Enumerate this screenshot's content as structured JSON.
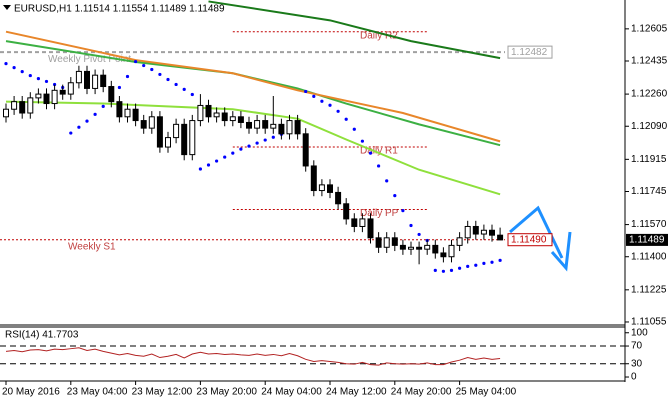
{
  "chart_data": {
    "type": "candlestick",
    "title": "EURUSD,H1  1.11514 1.11554 1.11489 1.11489",
    "categories": [
      "20 May 2016",
      null,
      null,
      null,
      null,
      null,
      null,
      null,
      "23 May 04:00",
      null,
      null,
      null,
      null,
      null,
      null,
      null,
      "23 May 12:00",
      null,
      null,
      null,
      null,
      null,
      null,
      null,
      "23 May 20:00",
      null,
      null,
      null,
      null,
      null,
      null,
      null,
      "24 May 04:00",
      null,
      null,
      null,
      null,
      null,
      null,
      null,
      "24 May 12:00",
      null,
      null,
      null,
      null,
      null,
      null,
      null,
      "24 May 20:00",
      null,
      null,
      null,
      null,
      null,
      null,
      null,
      "25 May 04:00",
      null,
      null,
      null,
      null,
      null
    ],
    "open": [
      1.1214,
      1.1218,
      1.1222,
      1.1216,
      1.1224,
      1.1226,
      1.1221,
      1.1228,
      1.1226,
      1.1232,
      1.1238,
      1.1229,
      1.1236,
      1.123,
      1.1222,
      1.1214,
      1.1218,
      1.1212,
      1.1208,
      1.1214,
      1.1198,
      1.1203,
      1.121,
      1.1194,
      1.1212,
      1.122,
      1.1214,
      1.1216,
      1.1212,
      1.1214,
      1.1211,
      1.1208,
      1.1212,
      1.1208,
      1.121,
      1.1205,
      1.1212,
      1.1205,
      1.1188,
      1.1175,
      1.1178,
      1.1174,
      1.1168,
      1.116,
      1.1156,
      1.116,
      1.115,
      1.1145,
      1.115,
      1.1146,
      1.1144,
      1.1145,
      1.1144,
      1.1146,
      1.1142,
      1.114,
      1.1146,
      1.115,
      1.1156,
      1.1152,
      1.1154,
      1.11514
    ],
    "high": [
      1.1221,
      1.1225,
      1.1225,
      1.1227,
      1.1229,
      1.1229,
      1.1231,
      1.1231,
      1.1235,
      1.1241,
      1.1241,
      1.1239,
      1.1239,
      1.1233,
      1.1225,
      1.1221,
      1.1221,
      1.1215,
      1.1217,
      1.1217,
      1.1206,
      1.1213,
      1.1213,
      1.1215,
      1.1226,
      1.1223,
      1.1219,
      1.1219,
      1.1217,
      1.1217,
      1.1214,
      1.1215,
      1.1215,
      1.1225,
      1.1213,
      1.1215,
      1.1215,
      1.1208,
      1.1191,
      1.1181,
      1.1181,
      1.1177,
      1.1171,
      1.1163,
      1.1163,
      1.1163,
      1.1153,
      1.1153,
      1.1153,
      1.1149,
      1.1148,
      1.1148,
      1.1149,
      1.1149,
      1.1145,
      1.1149,
      1.1153,
      1.1159,
      1.1159,
      1.1157,
      1.1157,
      1.11554
    ],
    "low": [
      1.1211,
      1.1215,
      1.1213,
      1.1213,
      1.1221,
      1.1218,
      1.1218,
      1.1223,
      1.1223,
      1.1229,
      1.1226,
      1.1226,
      1.1227,
      1.1219,
      1.1211,
      1.1211,
      1.1209,
      1.1205,
      1.1205,
      1.1195,
      1.1195,
      1.12,
      1.1191,
      1.1191,
      1.1209,
      1.1211,
      1.1211,
      1.1209,
      1.1209,
      1.1208,
      1.1205,
      1.1205,
      1.1205,
      1.1205,
      1.1202,
      1.1202,
      1.1202,
      1.1185,
      1.1172,
      1.1172,
      1.1171,
      1.1165,
      1.1157,
      1.1153,
      1.1153,
      1.1147,
      1.1142,
      1.1142,
      1.1143,
      1.1141,
      1.1141,
      1.1136,
      1.1141,
      1.1139,
      1.1137,
      1.1137,
      1.1143,
      1.1147,
      1.1149,
      1.1149,
      1.1148,
      1.11489
    ],
    "close": [
      1.1218,
      1.1222,
      1.1216,
      1.1224,
      1.1226,
      1.1221,
      1.1228,
      1.1226,
      1.1232,
      1.1238,
      1.1229,
      1.1236,
      1.123,
      1.1222,
      1.1214,
      1.1218,
      1.1212,
      1.1208,
      1.1214,
      1.1198,
      1.1203,
      1.121,
      1.1194,
      1.1212,
      1.122,
      1.1214,
      1.1216,
      1.1212,
      1.1214,
      1.1211,
      1.1208,
      1.1212,
      1.1208,
      1.121,
      1.1205,
      1.1212,
      1.1205,
      1.1188,
      1.1175,
      1.1178,
      1.1174,
      1.1168,
      1.116,
      1.1156,
      1.116,
      1.115,
      1.1145,
      1.115,
      1.1146,
      1.1144,
      1.1145,
      1.1144,
      1.1146,
      1.1142,
      1.114,
      1.1146,
      1.115,
      1.1156,
      1.1152,
      1.1154,
      1.11514,
      1.11489
    ],
    "up_color": "#ffffff",
    "down_color": "#000000",
    "ylim": [
      1.11039,
      1.12747
    ],
    "yticks": [
      1.12605,
      1.12435,
      {
        "value": 1.1226,
        "label": "1.12260"
      },
      {
        "value": 1.1209,
        "label": "1.12090"
      },
      1.11915,
      1.11745,
      {
        "value": 1.1157,
        "label": "1.11570"
      },
      {
        "value": 1.114,
        "label": "1.11400"
      },
      1.11225,
      1.11055
    ],
    "current_price": 1.11489,
    "lines": [
      {
        "color": "#1a7a1a",
        "x": [
          25,
          40,
          50,
          61
        ],
        "values": [
          1.1275,
          1.1265,
          1.1254,
          1.1245
        ]
      },
      {
        "color": "#3cb043",
        "x": [
          0,
          16,
          28,
          36,
          42,
          51,
          61
        ],
        "values": [
          1.1254,
          1.1243,
          1.1237,
          1.1229,
          1.1221,
          1.121,
          1.1199
        ]
      },
      {
        "color": "#8fe03c",
        "x": [
          0,
          12,
          28,
          36,
          42,
          51,
          61
        ],
        "values": [
          1.1222,
          1.1221,
          1.1218,
          1.1213,
          1.1202,
          1.1186,
          1.1173
        ]
      },
      {
        "color": "#e8862a",
        "x": [
          0,
          16,
          28,
          36,
          49,
          61
        ],
        "values": [
          1.1259,
          1.1244,
          1.1237,
          1.1228,
          1.1216,
          1.1201
        ]
      }
    ],
    "sar": {
      "color": "#0000ff",
      "values": [
        1.12421,
        1.124,
        1.12379,
        1.12358,
        1.12342,
        1.12327,
        1.12311,
        1.12295,
        1.12054,
        1.12085,
        1.12117,
        1.12153,
        1.12195,
        1.12243,
        1.12295,
        1.12353,
        1.12432,
        1.12411,
        1.1239,
        1.12364,
        1.12337,
        1.12311,
        1.12285,
        1.12258,
        1.11864,
        1.11885,
        1.11906,
        1.11927,
        1.11948,
        1.11969,
        1.11985,
        1.12001,
        1.12017,
        1.12032,
        1.12048,
        1.12064,
        1.12074,
        1.12274,
        1.12248,
        1.12222,
        1.12201,
        1.12169,
        1.12127,
        1.12074,
        1.12011,
        1.11948,
        1.1188,
        1.11801,
        1.11723,
        1.11644,
        1.11565,
        1.11518,
        1.11486,
        1.11328,
        1.11323,
        1.11328,
        1.11339,
        1.11349,
        1.11355,
        1.11365,
        1.11371,
        1.11381
      ]
    },
    "levels": [
      {
        "label": "Weekly Pivot Point",
        "value": 1.12482,
        "tag": "1.12482",
        "color": "#a0a0a0",
        "scope": "weekly"
      },
      {
        "label": "Weekly S1",
        "value": 1.1149,
        "tag": "1.11490",
        "color": "#c00000",
        "scope": "weekly"
      },
      {
        "label": "Daily R2",
        "value": 1.1259,
        "color": "#c00000",
        "scope": "daily"
      },
      {
        "label": "Daily R1",
        "value": 1.1198,
        "color": "#c00000",
        "scope": "daily"
      },
      {
        "label": "Daily PP",
        "value": 1.1165,
        "color": "#c00000",
        "scope": "daily"
      }
    ],
    "rsi": {
      "type": "line",
      "title": "RSI(14) 41.7703",
      "color": "#b22222",
      "values": [
        58,
        60,
        57,
        61,
        62,
        59,
        63,
        62,
        64,
        66,
        60,
        63,
        58,
        54,
        50,
        53,
        49,
        47,
        52,
        44,
        47,
        51,
        43,
        52,
        56,
        52,
        53,
        51,
        52,
        50,
        49,
        52,
        49,
        51,
        48,
        53,
        48,
        40,
        35,
        37,
        35,
        33,
        30,
        29,
        33,
        28,
        27,
        32,
        30,
        29,
        30,
        29,
        32,
        28,
        28,
        34,
        38,
        44,
        40,
        43,
        40,
        41.7703
      ],
      "ylim": [
        -9,
        113
      ],
      "yticks": [
        100,
        70,
        30,
        0
      ],
      "levels": [
        70,
        30
      ]
    }
  }
}
